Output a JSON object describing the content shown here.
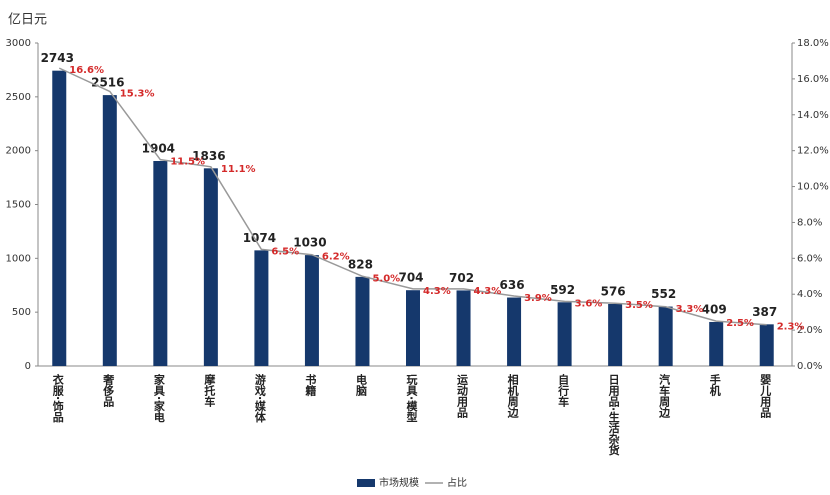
{
  "chart_data": {
    "type": "bar-line",
    "y_label": "亿日元",
    "categories": [
      "衣服·饰品",
      "奢侈品",
      "家具·家电",
      "摩托车",
      "游戏·媒体",
      "书籍",
      "电脑",
      "玩具·模型",
      "运动用品",
      "相机周边",
      "自行车",
      "日用品·生活杂货",
      "汽车周边",
      "手机",
      "婴儿用品"
    ],
    "series": [
      {
        "name": "市场规模",
        "color": "#15386c",
        "values": [
          2743,
          2516,
          1904,
          1836,
          1074,
          1030,
          828,
          704,
          702,
          636,
          592,
          576,
          552,
          409,
          387
        ]
      },
      {
        "name": "占比",
        "color": "#999999",
        "axis": "y2",
        "label_color": "#d42a2a",
        "values": [
          16.6,
          15.3,
          11.5,
          11.1,
          6.5,
          6.2,
          5.0,
          4.3,
          4.3,
          3.9,
          3.6,
          3.5,
          3.3,
          2.5,
          2.3
        ],
        "value_labels": [
          "16.6%",
          "15.3%",
          "11.5%",
          "11.1%",
          "6.5%",
          "6.2%",
          "5.0%",
          "4.3%",
          "4.3%",
          "3.9%",
          "3.6%",
          "3.5%",
          "3.3%",
          "2.5%",
          "2.3%"
        ]
      }
    ],
    "ylim": [
      0,
      3000
    ],
    "yticks": [
      0,
      500,
      1000,
      1500,
      2000,
      2500,
      3000
    ],
    "y2lim": [
      0,
      18
    ],
    "y2ticks": [
      {
        "value": 0,
        "label": "0.0%"
      },
      {
        "value": 2,
        "label": "2.0%"
      },
      {
        "value": 4,
        "label": "4.0%"
      },
      {
        "value": 6,
        "label": "6.0%"
      },
      {
        "value": 8,
        "label": "8.0%"
      },
      {
        "value": 10,
        "label": "10.0%"
      },
      {
        "value": 12,
        "label": "12.0%"
      },
      {
        "value": 14,
        "label": "14.0%"
      },
      {
        "value": 16,
        "label": "16.0%"
      },
      {
        "value": 18,
        "label": "18.0%"
      }
    ],
    "legend": "bottom"
  }
}
